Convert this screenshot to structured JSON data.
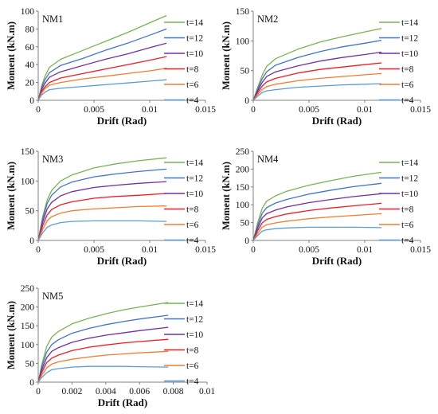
{
  "legend_labels": [
    "t=14",
    "t=12",
    "t=10",
    "t=8",
    "t=6",
    "t=4"
  ],
  "series_colors": [
    "#77b255",
    "#4472c4",
    "#7030a0",
    "#ee1c25",
    "#ed7d31",
    "#5b9bd5"
  ],
  "chart_data": [
    {
      "type": "line",
      "title": "NM1",
      "xlabel": "Drift (Rad)",
      "ylabel": "Moment (kN.m)",
      "xlim": [
        0,
        0.015
      ],
      "ylim": [
        0,
        100
      ],
      "xticks": [
        0,
        0.005,
        0.01,
        0.015
      ],
      "xtick_labels": [
        "0",
        "0.005",
        "0.01",
        "0.015"
      ],
      "yticks": [
        0,
        20,
        40,
        60,
        80,
        100
      ],
      "ytick_labels": [
        "0",
        "20",
        "40",
        "60",
        "80",
        "100"
      ],
      "grid": false,
      "legend": "right",
      "series": [
        {
          "name": "t=14",
          "x": [
            0,
            0.0003,
            0.0006,
            0.001,
            0.002,
            0.004,
            0.006,
            0.008,
            0.01,
            0.0115
          ],
          "y": [
            0,
            16,
            27,
            37,
            46,
            56,
            66,
            76,
            87,
            95
          ]
        },
        {
          "name": "t=12",
          "x": [
            0,
            0.0003,
            0.0006,
            0.001,
            0.002,
            0.004,
            0.006,
            0.008,
            0.01,
            0.0115
          ],
          "y": [
            0,
            14,
            23,
            31,
            39,
            47,
            56,
            64,
            73,
            80
          ]
        },
        {
          "name": "t=10",
          "x": [
            0,
            0.0003,
            0.0006,
            0.001,
            0.002,
            0.004,
            0.006,
            0.008,
            0.01,
            0.0115
          ],
          "y": [
            0,
            12,
            19,
            26,
            32,
            39,
            46,
            52,
            59,
            64
          ]
        },
        {
          "name": "t=8",
          "x": [
            0,
            0.0003,
            0.0006,
            0.001,
            0.002,
            0.004,
            0.006,
            0.008,
            0.01,
            0.0115
          ],
          "y": [
            0,
            10,
            15,
            20,
            25,
            30,
            35,
            40,
            45,
            49
          ]
        },
        {
          "name": "t=6",
          "x": [
            0,
            0.0003,
            0.0006,
            0.001,
            0.002,
            0.004,
            0.006,
            0.008,
            0.01,
            0.0115
          ],
          "y": [
            0,
            8,
            13,
            17,
            20,
            24,
            27,
            30,
            33,
            36
          ]
        },
        {
          "name": "t=4",
          "x": [
            0,
            0.0003,
            0.0006,
            0.001,
            0.002,
            0.004,
            0.006,
            0.008,
            0.01,
            0.0115
          ],
          "y": [
            0,
            6,
            9,
            12,
            13.5,
            15.5,
            17.5,
            19.5,
            21.5,
            23
          ]
        }
      ]
    },
    {
      "type": "line",
      "title": "NM2",
      "xlabel": "Drift (Rad)",
      "ylabel": "Moment (kN.m)",
      "xlim": [
        0,
        0.015
      ],
      "ylim": [
        0,
        150
      ],
      "xticks": [
        0,
        0.005,
        0.01,
        0.015
      ],
      "xtick_labels": [
        "0",
        "0.005",
        "0.01",
        "0.015"
      ],
      "yticks": [
        0,
        50,
        100,
        150
      ],
      "ytick_labels": [
        "0",
        "50",
        "100",
        "150"
      ],
      "grid": false,
      "legend": "right",
      "series": [
        {
          "name": "t=14",
          "x": [
            0,
            0.0004,
            0.0008,
            0.0012,
            0.002,
            0.004,
            0.006,
            0.008,
            0.01,
            0.0115
          ],
          "y": [
            0,
            22,
            42,
            57,
            70,
            86,
            98,
            107,
            115,
            121
          ]
        },
        {
          "name": "t=12",
          "x": [
            0,
            0.0004,
            0.0008,
            0.0012,
            0.002,
            0.004,
            0.006,
            0.008,
            0.01,
            0.0115
          ],
          "y": [
            0,
            19,
            36,
            48,
            59,
            72,
            82,
            90,
            96,
            101
          ]
        },
        {
          "name": "t=10",
          "x": [
            0,
            0.0004,
            0.0008,
            0.0012,
            0.002,
            0.004,
            0.006,
            0.008,
            0.01,
            0.0115
          ],
          "y": [
            0,
            16,
            30,
            40,
            48,
            58,
            66,
            72,
            77,
            81
          ]
        },
        {
          "name": "t=8",
          "x": [
            0,
            0.0004,
            0.0008,
            0.0012,
            0.002,
            0.004,
            0.006,
            0.008,
            0.01,
            0.0115
          ],
          "y": [
            0,
            13,
            24,
            31,
            37,
            46,
            52,
            56,
            60,
            63
          ]
        },
        {
          "name": "t=6",
          "x": [
            0,
            0.0004,
            0.0008,
            0.0012,
            0.002,
            0.004,
            0.006,
            0.008,
            0.01,
            0.0115
          ],
          "y": [
            0,
            10,
            18,
            23,
            27,
            33,
            37,
            40,
            43,
            45
          ]
        },
        {
          "name": "t=4",
          "x": [
            0,
            0.0004,
            0.0008,
            0.0012,
            0.002,
            0.004,
            0.006,
            0.008,
            0.01,
            0.0115
          ],
          "y": [
            0,
            7,
            13,
            16,
            18,
            22,
            24,
            26,
            27,
            28
          ]
        }
      ]
    },
    {
      "type": "line",
      "title": "NM3",
      "xlabel": "Drift (Rad)",
      "ylabel": "Moment (kN.m)",
      "xlim": [
        0,
        0.015
      ],
      "ylim": [
        0,
        150
      ],
      "xticks": [
        0,
        0.005,
        0.01,
        0.015
      ],
      "xtick_labels": [
        "0",
        "0.005",
        "0.01",
        "0.015"
      ],
      "yticks": [
        0,
        50,
        100,
        150
      ],
      "ytick_labels": [
        "0",
        "50",
        "100",
        "150"
      ],
      "grid": false,
      "legend": "right",
      "series": [
        {
          "name": "t=14",
          "x": [
            0,
            0.0004,
            0.0008,
            0.0012,
            0.002,
            0.003,
            0.005,
            0.007,
            0.009,
            0.0115
          ],
          "y": [
            0,
            40,
            68,
            84,
            100,
            110,
            122,
            129,
            134,
            139
          ]
        },
        {
          "name": "t=12",
          "x": [
            0,
            0.0004,
            0.0008,
            0.0012,
            0.002,
            0.003,
            0.005,
            0.007,
            0.009,
            0.0115
          ],
          "y": [
            0,
            36,
            62,
            76,
            90,
            98,
            107,
            112,
            116,
            120
          ]
        },
        {
          "name": "t=10",
          "x": [
            0,
            0.0004,
            0.0008,
            0.0012,
            0.002,
            0.003,
            0.005,
            0.007,
            0.009,
            0.0115
          ],
          "y": [
            0,
            31,
            53,
            64,
            75,
            82,
            89,
            93,
            96,
            99
          ]
        },
        {
          "name": "t=8",
          "x": [
            0,
            0.0004,
            0.0008,
            0.0012,
            0.002,
            0.003,
            0.005,
            0.007,
            0.009,
            0.0115
          ],
          "y": [
            0,
            25,
            43,
            52,
            60,
            65,
            71,
            74,
            76,
            79
          ]
        },
        {
          "name": "t=6",
          "x": [
            0,
            0.0004,
            0.0008,
            0.0012,
            0.002,
            0.003,
            0.005,
            0.007,
            0.009,
            0.0115
          ],
          "y": [
            0,
            19,
            33,
            40,
            46,
            50,
            53,
            55,
            57,
            58
          ]
        },
        {
          "name": "t=4",
          "x": [
            0,
            0.0004,
            0.0008,
            0.0012,
            0.002,
            0.003,
            0.005,
            0.007,
            0.009,
            0.0115
          ],
          "y": [
            0,
            13,
            22,
            26,
            30,
            32,
            33,
            33,
            33,
            32
          ]
        }
      ]
    },
    {
      "type": "line",
      "title": "NM4",
      "xlabel": "Drift (Rad)",
      "ylabel": "Moment (kN.m)",
      "xlim": [
        0,
        0.015
      ],
      "ylim": [
        0,
        250
      ],
      "xticks": [
        0,
        0.005,
        0.01,
        0.015
      ],
      "xtick_labels": [
        "0",
        "0.005",
        "0.01",
        "0.015"
      ],
      "yticks": [
        0,
        50,
        100,
        150,
        200,
        250
      ],
      "ytick_labels": [
        "0",
        "50",
        "100",
        "150",
        "200",
        "250"
      ],
      "grid": false,
      "legend": "right",
      "series": [
        {
          "name": "t=14",
          "x": [
            0,
            0.0004,
            0.0008,
            0.0012,
            0.002,
            0.003,
            0.005,
            0.007,
            0.009,
            0.0115
          ],
          "y": [
            0,
            50,
            90,
            110,
            125,
            138,
            155,
            168,
            180,
            191
          ]
        },
        {
          "name": "t=12",
          "x": [
            0,
            0.0004,
            0.0008,
            0.0012,
            0.002,
            0.003,
            0.005,
            0.007,
            0.009,
            0.0115
          ],
          "y": [
            0,
            42,
            76,
            92,
            105,
            115,
            130,
            141,
            151,
            160
          ]
        },
        {
          "name": "t=10",
          "x": [
            0,
            0.0004,
            0.0008,
            0.0012,
            0.002,
            0.003,
            0.005,
            0.007,
            0.009,
            0.0115
          ],
          "y": [
            0,
            35,
            63,
            75,
            85,
            94,
            106,
            115,
            123,
            131
          ]
        },
        {
          "name": "t=8",
          "x": [
            0,
            0.0004,
            0.0008,
            0.0012,
            0.002,
            0.003,
            0.005,
            0.007,
            0.009,
            0.0115
          ],
          "y": [
            0,
            28,
            49,
            59,
            67,
            74,
            84,
            91,
            97,
            104
          ]
        },
        {
          "name": "t=6",
          "x": [
            0,
            0.0004,
            0.0008,
            0.0012,
            0.002,
            0.003,
            0.005,
            0.007,
            0.009,
            0.0115
          ],
          "y": [
            0,
            20,
            37,
            44,
            49,
            54,
            61,
            66,
            70,
            75
          ]
        },
        {
          "name": "t=4",
          "x": [
            0,
            0.0004,
            0.0008,
            0.0012,
            0.002,
            0.003,
            0.005,
            0.007,
            0.009,
            0.0115
          ],
          "y": [
            0,
            14,
            26,
            30,
            33,
            35,
            37,
            37,
            37,
            36
          ]
        }
      ]
    },
    {
      "type": "line",
      "title": "NM5",
      "xlabel": "Drift (Rad)",
      "ylabel": "Moment (kN.m)",
      "xlim": [
        0,
        0.01
      ],
      "ylim": [
        0,
        250
      ],
      "xticks": [
        0,
        0.002,
        0.004,
        0.006,
        0.008,
        0.01
      ],
      "xtick_labels": [
        "0",
        "0.002",
        "0.004",
        "0.006",
        "0.008",
        "0.01"
      ],
      "yticks": [
        0,
        50,
        100,
        150,
        200,
        250
      ],
      "ytick_labels": [
        "0",
        "50",
        "100",
        "150",
        "200",
        "250"
      ],
      "grid": false,
      "legend": "right",
      "series": [
        {
          "name": "t=14",
          "x": [
            0,
            0.0002,
            0.0005,
            0.0008,
            0.0012,
            0.002,
            0.003,
            0.004,
            0.005,
            0.006,
            0.0077
          ],
          "y": [
            0,
            45,
            95,
            120,
            135,
            155,
            170,
            182,
            192,
            200,
            212
          ]
        },
        {
          "name": "t=12",
          "x": [
            0,
            0.0002,
            0.0005,
            0.0008,
            0.0012,
            0.002,
            0.003,
            0.004,
            0.005,
            0.006,
            0.0077
          ],
          "y": [
            0,
            38,
            80,
            100,
            113,
            130,
            143,
            153,
            161,
            168,
            178
          ]
        },
        {
          "name": "t=10",
          "x": [
            0,
            0.0002,
            0.0005,
            0.0008,
            0.0012,
            0.002,
            0.003,
            0.004,
            0.005,
            0.006,
            0.0077
          ],
          "y": [
            0,
            31,
            65,
            82,
            92,
            106,
            117,
            125,
            131,
            137,
            146
          ]
        },
        {
          "name": "t=8",
          "x": [
            0,
            0.0002,
            0.0005,
            0.0008,
            0.0012,
            0.002,
            0.003,
            0.004,
            0.005,
            0.006,
            0.0077
          ],
          "y": [
            0,
            25,
            52,
            64,
            72,
            84,
            93,
            99,
            104,
            108,
            114
          ]
        },
        {
          "name": "t=6",
          "x": [
            0,
            0.0002,
            0.0005,
            0.0008,
            0.0012,
            0.002,
            0.003,
            0.004,
            0.005,
            0.006,
            0.0077
          ],
          "y": [
            0,
            18,
            38,
            48,
            54,
            61,
            67,
            72,
            75,
            78,
            82
          ]
        },
        {
          "name": "t=4",
          "x": [
            0,
            0.0002,
            0.0005,
            0.0008,
            0.0012,
            0.002,
            0.003,
            0.004,
            0.005,
            0.006,
            0.0077
          ],
          "y": [
            0,
            12,
            25,
            33,
            36,
            40,
            42,
            42,
            42,
            41,
            40
          ]
        }
      ]
    }
  ]
}
